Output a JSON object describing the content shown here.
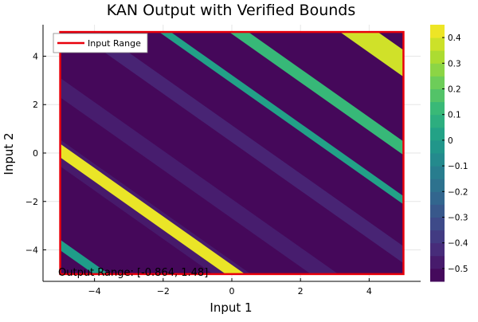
{
  "chart_data": {
    "type": "contour",
    "title": "KAN Output with Verified Bounds",
    "xlabel": "Input 1",
    "ylabel": "Input 2",
    "xlim": [
      -5.5,
      5.5
    ],
    "ylim": [
      -5.3,
      5.3
    ],
    "x_ticks": [
      -4,
      -2,
      0,
      2,
      4
    ],
    "y_ticks": [
      -4,
      -2,
      0,
      2,
      4
    ],
    "x_tick_labels": [
      "−4",
      "−2",
      "0",
      "2",
      "4"
    ],
    "y_tick_labels": [
      "−4",
      "−2",
      "0",
      "2",
      "4"
    ],
    "colormap": "viridis",
    "colorbar": {
      "range": [
        -0.55,
        0.45
      ],
      "ticks": [
        0.4,
        0.3,
        0.2,
        0.1,
        0.0,
        -0.1,
        -0.2,
        -0.3,
        -0.4,
        -0.5
      ],
      "tick_labels": [
        "0.4",
        "0.3",
        "0.2",
        "0.1",
        "0",
        "−0.1",
        "−0.2",
        "−0.3",
        "−0.4",
        "−0.5"
      ]
    },
    "background_value": -0.53,
    "bands": [
      {
        "value": -0.48,
        "x_at_y0": -5.0,
        "halfwidth": 0.55
      },
      {
        "value": 0.42,
        "x_at_y0": -4.9,
        "halfwidth": 0.28
      },
      {
        "value": -0.47,
        "x_at_y0": -2.3,
        "halfwidth": 0.4
      },
      {
        "value": -0.45,
        "x_at_y0": 0.8,
        "halfwidth": 0.35
      },
      {
        "value": 0.02,
        "x_at_y0": 3.05,
        "halfwidth": 0.17
      },
      {
        "value": 0.12,
        "x_at_y0": 5.2,
        "halfwidth": 0.28
      },
      {
        "value": 0.38,
        "x_at_y0": 8.7,
        "halfwidth": 0.55
      },
      {
        "value": 0.0,
        "x_at_y0": -8.8,
        "halfwidth": 0.22
      }
    ],
    "legend": {
      "label": "Input Range",
      "color": "#e8000b",
      "position": "top-left"
    },
    "input_range": {
      "x": [
        -5,
        5
      ],
      "y": [
        -5,
        5
      ]
    },
    "annotation": "Output Range: [-0.864, 1.48]",
    "grid": true
  }
}
